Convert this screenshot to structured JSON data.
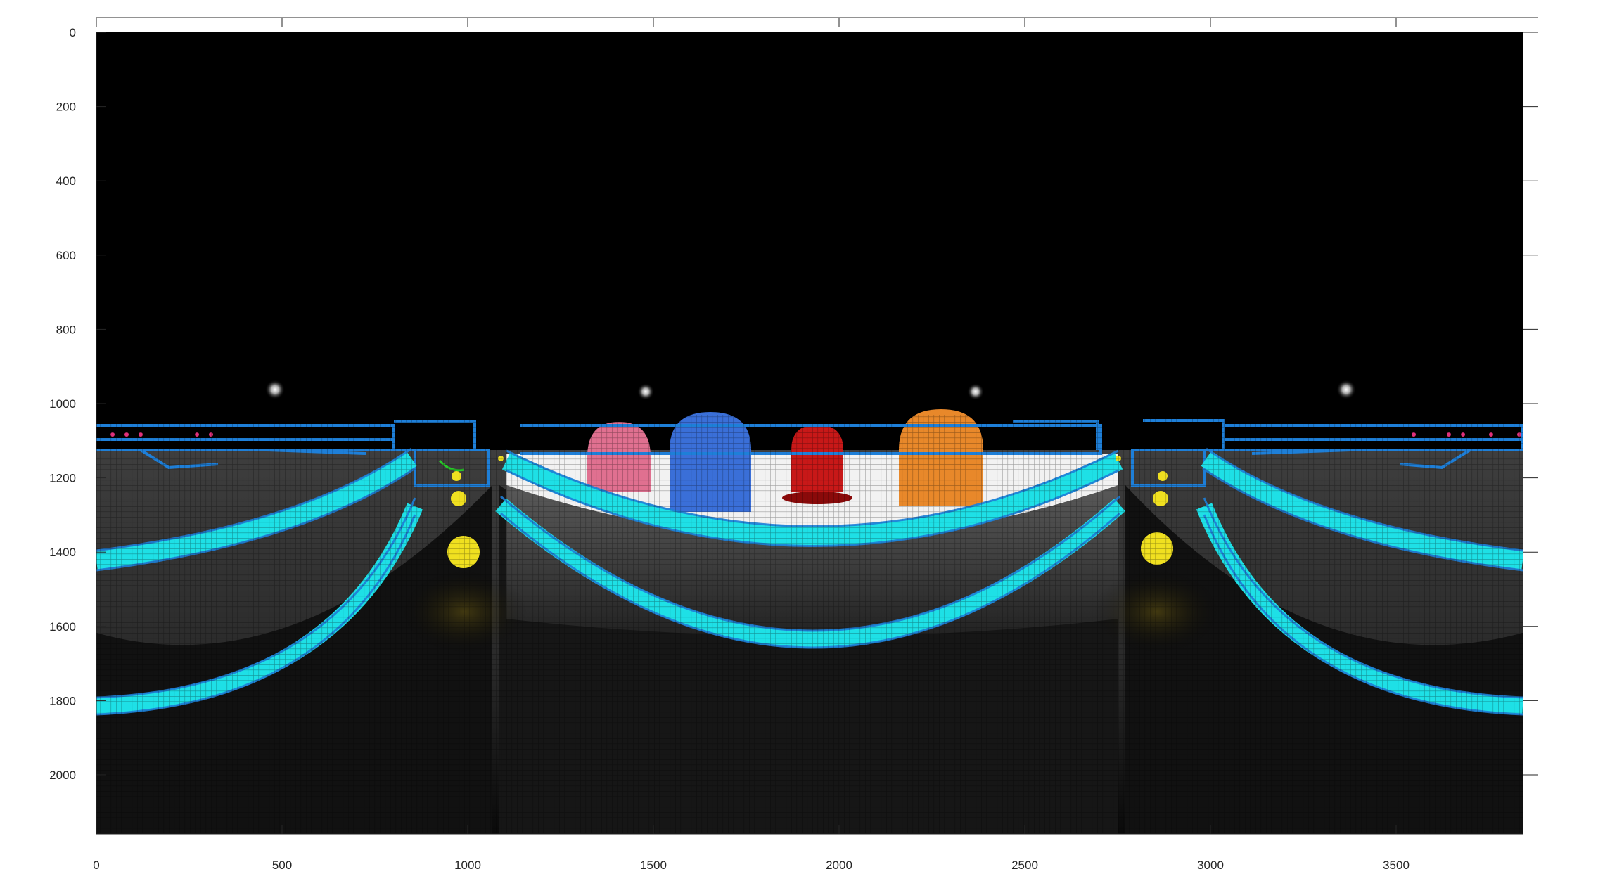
{
  "figure": {
    "x_axis": {
      "ticks": [
        "0",
        "500",
        "1000",
        "1500",
        "2000",
        "2500",
        "3000",
        "3500"
      ]
    },
    "y_axis": {
      "ticks": [
        "0",
        "200",
        "400",
        "600",
        "800",
        "1000",
        "1200",
        "1400",
        "1600",
        "1800",
        "2000"
      ]
    }
  },
  "scene": {
    "description_type": "equirectangular panorama of a neon maze game arena",
    "colors": {
      "background": "#000000",
      "neon_cyan": "#1ee0e6",
      "neon_blue": "#1e7fd8",
      "floor_grey": "#3a3a3a",
      "pellet_yellow": "#f0e020",
      "ghost_pink": "#e07090",
      "ghost_blue": "#3a6fd8",
      "ghost_red": "#c81818",
      "ghost_orange": "#e8882a"
    },
    "ghosts": [
      {
        "name": "pink-ghost",
        "color": "#e07090"
      },
      {
        "name": "blue-ghost",
        "color": "#3a6fd8"
      },
      {
        "name": "red-ghost",
        "color": "#c81818"
      },
      {
        "name": "orange-ghost",
        "color": "#e8882a"
      }
    ],
    "pellet_count": 8,
    "ceiling_light_count": 4
  }
}
